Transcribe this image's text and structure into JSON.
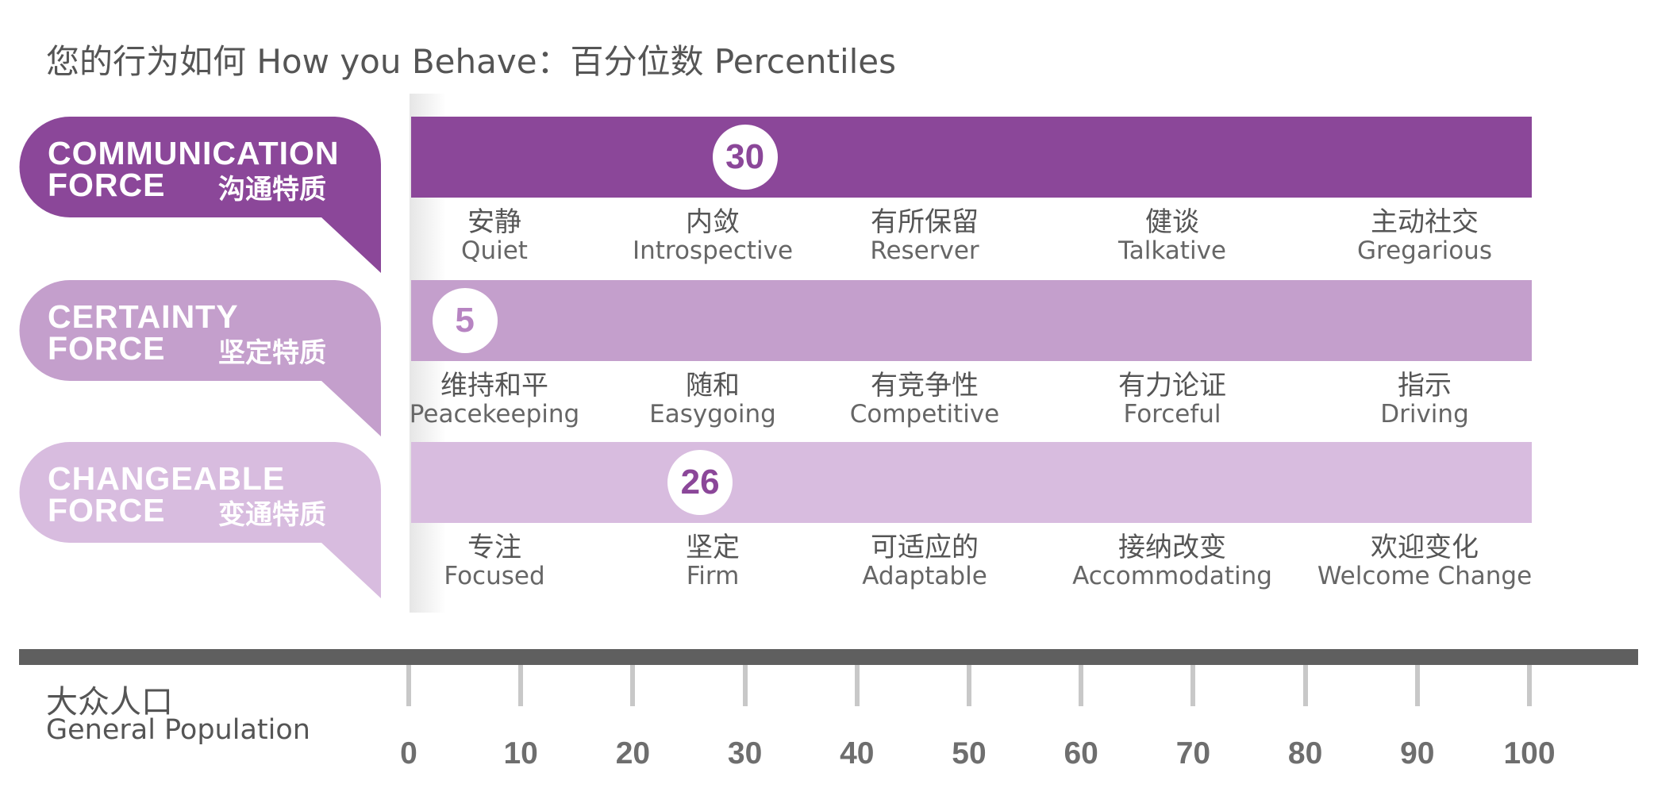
{
  "title": "您的行为如何 How you Behave：百分位数 Percentiles",
  "colors": {
    "row1": "#8b4799",
    "row2": "#c49fcc",
    "row3": "#d8bcdf",
    "axis": "#5f5f5f"
  },
  "chart_data": {
    "type": "bar",
    "title": "您的行为如何 How you Behave：百分位数 Percentiles",
    "xlim": [
      0,
      100
    ],
    "x_ticks": [
      "0",
      "10",
      "20",
      "30",
      "40",
      "50",
      "60",
      "70",
      "80",
      "90",
      "100"
    ],
    "axis_label_zh": "大众人口",
    "axis_label_en": "General Population",
    "series": [
      {
        "name_line1": "COMMUNICATION",
        "name_line2": "FORCE",
        "name_zh": "沟通特质",
        "value": 30,
        "value_label": "30",
        "color": "#8b4799",
        "text_color": "#8b4799",
        "scale": [
          {
            "zh": "安静",
            "en": "Quiet"
          },
          {
            "zh": "内敛",
            "en": "Introspective"
          },
          {
            "zh": "有所保留",
            "en": "Reserver"
          },
          {
            "zh": "健谈",
            "en": "Talkative"
          },
          {
            "zh": "主动社交",
            "en": "Gregarious"
          }
        ]
      },
      {
        "name_line1": "CERTAINTY",
        "name_line2": "FORCE",
        "name_zh": "坚定特质",
        "value": 5,
        "value_label": "5",
        "color": "#c49fcc",
        "text_color": "#b784c2",
        "scale": [
          {
            "zh": "维持和平",
            "en": "Peacekeeping"
          },
          {
            "zh": "随和",
            "en": "Easygoing"
          },
          {
            "zh": "有竞争性",
            "en": "Competitive"
          },
          {
            "zh": "有力论证",
            "en": "Forceful"
          },
          {
            "zh": "指示",
            "en": "Driving"
          }
        ]
      },
      {
        "name_line1": "CHANGEABLE",
        "name_line2": "FORCE",
        "name_zh": "变通特质",
        "value": 26,
        "value_label": "26",
        "color": "#d8bcdf",
        "text_color": "#8b4799",
        "scale": [
          {
            "zh": "专注",
            "en": "Focused"
          },
          {
            "zh": "坚定",
            "en": "Firm"
          },
          {
            "zh": "可适应的",
            "en": "Adaptable"
          },
          {
            "zh": "接纳改变",
            "en": "Accommodating"
          },
          {
            "zh": "欢迎变化",
            "en": "Welcome Change"
          }
        ]
      }
    ]
  }
}
